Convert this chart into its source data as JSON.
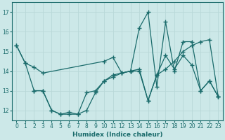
{
  "xlabel": "Humidex (Indice chaleur)",
  "bg_color": "#cce8e8",
  "line_color": "#1a6b6b",
  "grid_color": "#b8d8d8",
  "xlim": [
    -0.5,
    23.5
  ],
  "ylim": [
    11.5,
    17.5
  ],
  "yticks": [
    12,
    13,
    14,
    15,
    16,
    17
  ],
  "xticks": [
    0,
    1,
    2,
    3,
    4,
    5,
    6,
    7,
    8,
    9,
    10,
    11,
    12,
    13,
    14,
    15,
    16,
    17,
    18,
    19,
    20,
    21,
    22,
    23
  ],
  "series1_x": [
    0,
    1,
    2,
    3,
    10,
    11,
    12,
    13,
    14,
    15,
    16,
    17,
    18,
    19,
    20,
    21,
    22,
    23
  ],
  "series1_y": [
    15.3,
    14.4,
    14.2,
    13.9,
    14.5,
    14.7,
    13.9,
    14.0,
    16.2,
    17.0,
    13.2,
    16.5,
    14.0,
    15.5,
    15.5,
    13.0,
    13.5,
    12.7
  ],
  "series2_x": [
    0,
    1,
    2,
    3,
    4,
    5,
    6,
    7,
    8,
    9,
    10,
    11,
    12,
    13,
    14,
    15,
    16,
    17,
    18,
    19,
    20,
    21,
    22,
    23
  ],
  "series2_y": [
    15.3,
    14.4,
    13.0,
    13.0,
    12.0,
    11.8,
    11.8,
    11.8,
    12.0,
    12.9,
    13.5,
    13.8,
    13.9,
    14.0,
    14.1,
    12.5,
    13.8,
    14.1,
    14.5,
    15.0,
    15.3,
    15.5,
    15.6,
    12.7
  ],
  "series3_x": [
    2,
    3,
    4,
    5,
    6,
    7,
    8,
    9,
    10,
    11,
    12,
    13,
    14,
    15,
    16,
    17,
    18,
    19,
    20,
    21,
    22,
    23
  ],
  "series3_y": [
    13.0,
    13.0,
    12.0,
    11.8,
    11.9,
    11.8,
    12.9,
    13.0,
    13.5,
    13.7,
    13.9,
    14.0,
    14.0,
    12.5,
    13.8,
    14.8,
    14.1,
    14.8,
    14.3,
    13.0,
    13.5,
    12.7
  ]
}
